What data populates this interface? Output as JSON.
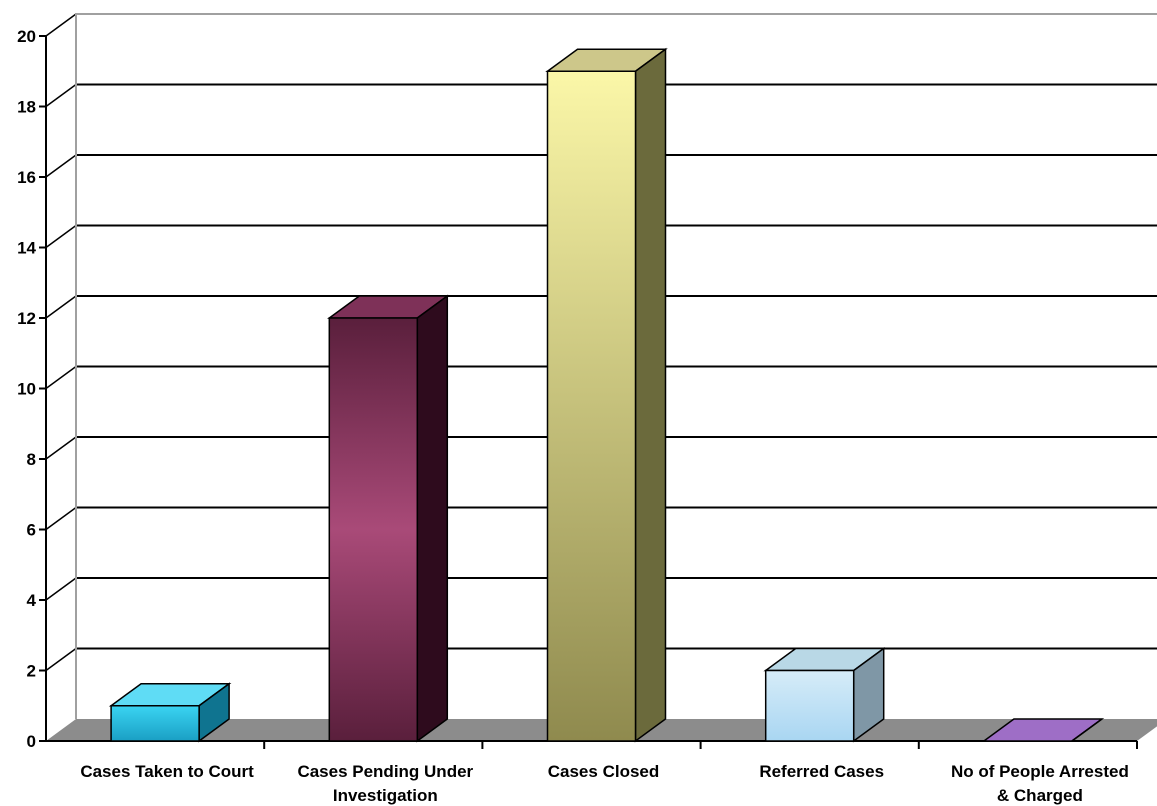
{
  "chart_data": {
    "type": "bar",
    "title": "",
    "xlabel": "",
    "ylabel": "",
    "ylim": [
      0,
      20
    ],
    "yticks": [
      0,
      2,
      4,
      6,
      8,
      10,
      12,
      14,
      16,
      18,
      20
    ],
    "grid": true,
    "categories": [
      "Cases Taken to Court",
      "Cases Pending Under Investigation",
      "Cases Closed",
      "Referred Cases",
      "No of People Arrested & Charged"
    ],
    "category_label_lines": [
      [
        "Cases Taken to Court"
      ],
      [
        "Cases Pending Under",
        "Investigation"
      ],
      [
        "Cases Closed"
      ],
      [
        "Referred Cases"
      ],
      [
        "No of People Arrested",
        "& Charged"
      ]
    ],
    "values": [
      1,
      12,
      19,
      2,
      0
    ],
    "colors": [
      {
        "front_top": "#3ad4f2",
        "front_bottom": "#1a9fc4",
        "side": "#0f7490",
        "top": "#5fdcf5"
      },
      {
        "front_top": "#5a1f3c",
        "front_bottom": "#5a1f3c",
        "front_mid": "#a94a78",
        "side": "#2e0b1d",
        "top": "#7e3158"
      },
      {
        "front_top": "#fbf7a8",
        "front_bottom": "#8f8a4e",
        "side": "#6b6a3c",
        "top": "#cdc78a"
      },
      {
        "front_top": "#d6ecf8",
        "front_bottom": "#a9d6f2",
        "side": "#7f97a6",
        "top": "#b9d8e6"
      },
      {
        "front_top": "#b58ad6",
        "front_bottom": "#8c5bb5",
        "side": "#6b3f92",
        "top": "#9e6ec6"
      }
    ],
    "floor_color": "#8c8c8c",
    "wall_color": "#ffffff"
  }
}
